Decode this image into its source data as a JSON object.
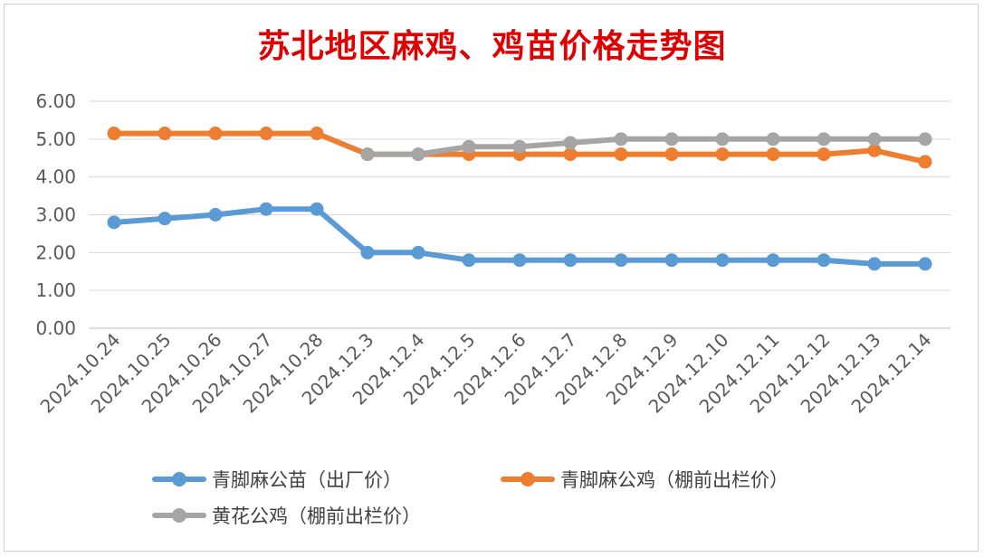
{
  "chart_data": {
    "type": "line",
    "title": "苏北地区麻鸡、鸡苗价格走势图",
    "xlabel": "",
    "ylabel": "",
    "ylim": [
      0,
      6
    ],
    "yticks": [
      "0.00",
      "1.00",
      "2.00",
      "3.00",
      "4.00",
      "5.00",
      "6.00"
    ],
    "grid": true,
    "legend_position": "bottom",
    "categories": [
      "2024.10.24",
      "2024.10.25",
      "2024.10.26",
      "2024.10.27",
      "2024.10.28",
      "2024.12.3",
      "2024.12.4",
      "2024.12.5",
      "2024.12.6",
      "2024.12.7",
      "2024.12.8",
      "2024.12.9",
      "2024.12.10",
      "2024.12.11",
      "2024.12.12",
      "2024.12.13",
      "2024.12.14"
    ],
    "series": [
      {
        "name": "青脚麻公苗（出厂价）",
        "color": "#5B9BD5",
        "values": [
          2.8,
          2.9,
          3.0,
          3.15,
          3.15,
          2.0,
          2.0,
          1.8,
          1.8,
          1.8,
          1.8,
          1.8,
          1.8,
          1.8,
          1.8,
          1.7,
          1.7
        ]
      },
      {
        "name": "青脚麻公鸡（棚前出栏价）",
        "color": "#ED7D31",
        "values": [
          5.15,
          5.15,
          5.15,
          5.15,
          5.15,
          4.6,
          4.6,
          4.6,
          4.6,
          4.6,
          4.6,
          4.6,
          4.6,
          4.6,
          4.6,
          4.7,
          4.4
        ]
      },
      {
        "name": "黄花公鸡（棚前出栏价）",
        "color": "#A5A5A5",
        "values": [
          null,
          null,
          null,
          null,
          null,
          4.6,
          4.6,
          4.8,
          4.8,
          4.9,
          5.0,
          5.0,
          5.0,
          5.0,
          5.0,
          5.0,
          5.0
        ]
      }
    ]
  }
}
